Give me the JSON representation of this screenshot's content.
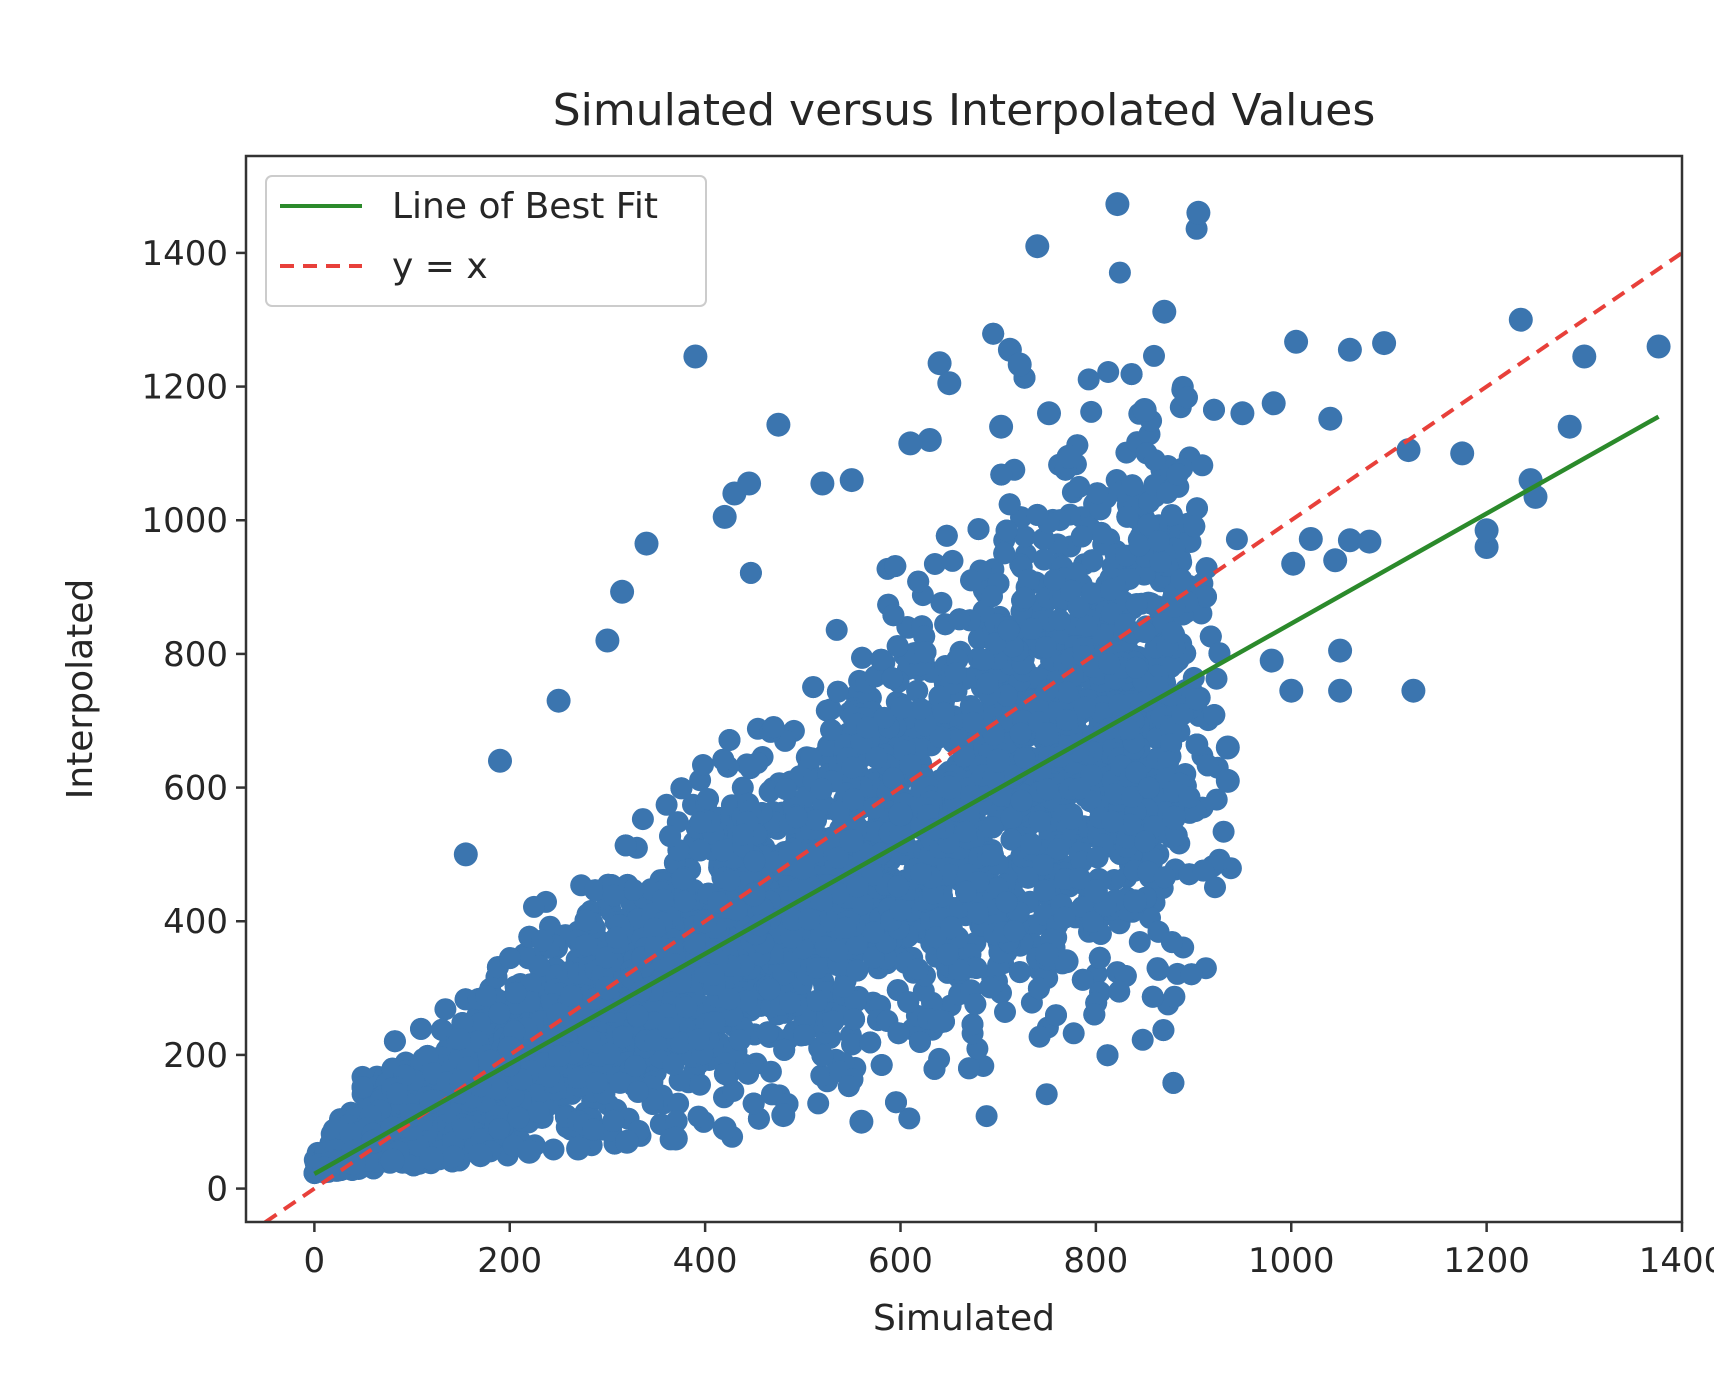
{
  "chart_data": {
    "type": "scatter",
    "title": "Simulated versus Interpolated Values",
    "xlabel": "Simulated",
    "ylabel": "Interpolated",
    "xlim": [
      -70,
      1400
    ],
    "ylim": [
      -50,
      1545
    ],
    "xticks": [
      0,
      200,
      400,
      600,
      800,
      1000,
      1200,
      1400
    ],
    "yticks": [
      0,
      200,
      400,
      600,
      800,
      1000,
      1200,
      1400
    ],
    "xtick_labels": [
      "0",
      "200",
      "400",
      "600",
      "800",
      "1000",
      "1200",
      "1400"
    ],
    "ytick_labels": [
      "0",
      "200",
      "400",
      "600",
      "800",
      "1000",
      "1200",
      "1400"
    ],
    "grid": false,
    "legend_position": "upper-left",
    "colors": {
      "points": "#3b75af",
      "fit_line": "#2b8a2b",
      "identity_line": "#e8403a",
      "axes": "#333333"
    },
    "series": [
      {
        "kind": "scatter",
        "note_density": "dense cloud of thousands of points along the diagonal",
        "points": [
          [
            5,
            35
          ],
          [
            20,
            40
          ],
          [
            40,
            55
          ],
          [
            60,
            70
          ],
          [
            80,
            90
          ],
          [
            100,
            110
          ],
          [
            120,
            130
          ],
          [
            150,
            160
          ],
          [
            180,
            190
          ],
          [
            200,
            210
          ],
          [
            250,
            260
          ],
          [
            300,
            300
          ],
          [
            350,
            360
          ],
          [
            400,
            400
          ],
          [
            450,
            440
          ],
          [
            500,
            480
          ],
          [
            550,
            520
          ],
          [
            600,
            560
          ],
          [
            650,
            600
          ],
          [
            700,
            640
          ],
          [
            750,
            680
          ],
          [
            390,
            1245
          ],
          [
            475,
            1143
          ],
          [
            640,
            1235
          ],
          [
            650,
            1205
          ],
          [
            712,
            1255
          ],
          [
            722,
            1233
          ],
          [
            740,
            1410
          ],
          [
            822,
            1473
          ],
          [
            905,
            1460
          ],
          [
            870,
            1312
          ],
          [
            1005,
            1267
          ],
          [
            1060,
            1255
          ],
          [
            1095,
            1265
          ],
          [
            1235,
            1300
          ],
          [
            1300,
            1245
          ],
          [
            1376,
            1260
          ],
          [
            1285,
            1140
          ],
          [
            1120,
            1105
          ],
          [
            1175,
            1100
          ],
          [
            1040,
            1152
          ],
          [
            982,
            1175
          ],
          [
            850,
            1165
          ],
          [
            950,
            1160
          ],
          [
            772,
            1095
          ],
          [
            752,
            1160
          ],
          [
            703,
            1140
          ],
          [
            630,
            1120
          ],
          [
            610,
            1115
          ],
          [
            1245,
            1060
          ],
          [
            1250,
            1035
          ],
          [
            1200,
            960
          ],
          [
            1200,
            985
          ],
          [
            1060,
            970
          ],
          [
            1080,
            968
          ],
          [
            1045,
            940
          ],
          [
            1020,
            972
          ],
          [
            1002,
            935
          ],
          [
            1050,
            805
          ],
          [
            1050,
            745
          ],
          [
            1125,
            745
          ],
          [
            1000,
            745
          ],
          [
            980,
            790
          ],
          [
            935,
            660
          ],
          [
            935,
            610
          ],
          [
            880,
            555
          ],
          [
            840,
            430
          ],
          [
            800,
            445
          ],
          [
            770,
            340
          ],
          [
            750,
            350
          ],
          [
            640,
            250
          ],
          [
            340,
            965
          ],
          [
            315,
            893
          ],
          [
            155,
            500
          ],
          [
            190,
            640
          ],
          [
            560,
            100
          ],
          [
            480,
            110
          ],
          [
            420,
            90
          ],
          [
            370,
            75
          ],
          [
            320,
            70
          ],
          [
            270,
            60
          ],
          [
            220,
            55
          ],
          [
            170,
            50
          ],
          [
            120,
            45
          ],
          [
            80,
            42
          ],
          [
            40,
            38
          ],
          [
            10,
            30
          ],
          [
            300,
            820
          ],
          [
            250,
            730
          ],
          [
            430,
            1040
          ],
          [
            445,
            1055
          ],
          [
            420,
            1005
          ],
          [
            550,
            1060
          ],
          [
            520,
            1055
          ]
        ]
      },
      {
        "name": "Line of Best Fit",
        "kind": "line",
        "style": "solid",
        "x": [
          0,
          1376
        ],
        "y": [
          22,
          1155
        ]
      },
      {
        "name": "y = x",
        "kind": "line",
        "style": "dashed",
        "x": [
          -70,
          1400
        ],
        "y": [
          -70,
          1400
        ]
      }
    ]
  }
}
